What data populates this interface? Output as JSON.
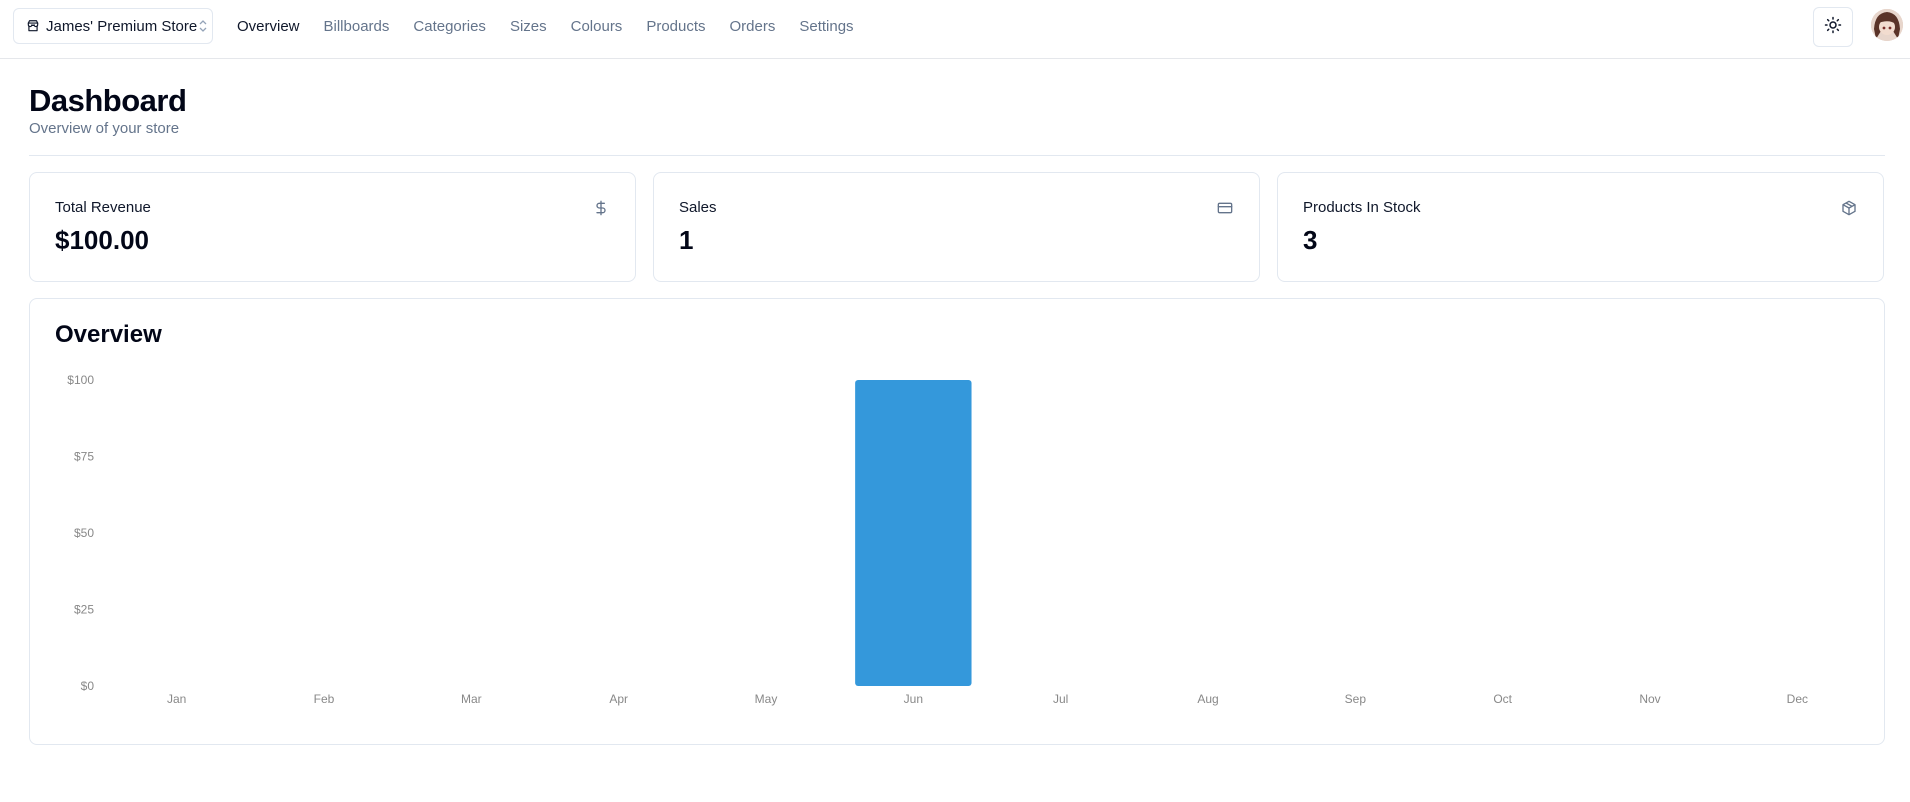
{
  "store_switcher": {
    "name": "James' Premium Store"
  },
  "nav": [
    {
      "label": "Overview",
      "active": true
    },
    {
      "label": "Billboards",
      "active": false
    },
    {
      "label": "Categories",
      "active": false
    },
    {
      "label": "Sizes",
      "active": false
    },
    {
      "label": "Colours",
      "active": false
    },
    {
      "label": "Products",
      "active": false
    },
    {
      "label": "Orders",
      "active": false
    },
    {
      "label": "Settings",
      "active": false
    }
  ],
  "header": {
    "title": "Dashboard",
    "subtitle": "Overview of your store"
  },
  "cards": [
    {
      "label": "Total Revenue",
      "value": "$100.00",
      "icon": "dollar-sign-icon"
    },
    {
      "label": "Sales",
      "value": "1",
      "icon": "credit-card-icon"
    },
    {
      "label": "Products In Stock",
      "value": "3",
      "icon": "package-icon"
    }
  ],
  "overview": {
    "title": "Overview"
  },
  "colors": {
    "bar": "#3498db",
    "axis_text": "#888888"
  },
  "chart_data": {
    "type": "bar",
    "categories": [
      "Jan",
      "Feb",
      "Mar",
      "Apr",
      "May",
      "Jun",
      "Jul",
      "Aug",
      "Sep",
      "Oct",
      "Nov",
      "Dec"
    ],
    "values": [
      0,
      0,
      0,
      0,
      0,
      100,
      0,
      0,
      0,
      0,
      0,
      0
    ],
    "yticks": [
      "$0",
      "$25",
      "$50",
      "$75",
      "$100"
    ],
    "ylim": [
      0,
      100
    ],
    "title": "Overview",
    "grid": false,
    "legend": false
  }
}
